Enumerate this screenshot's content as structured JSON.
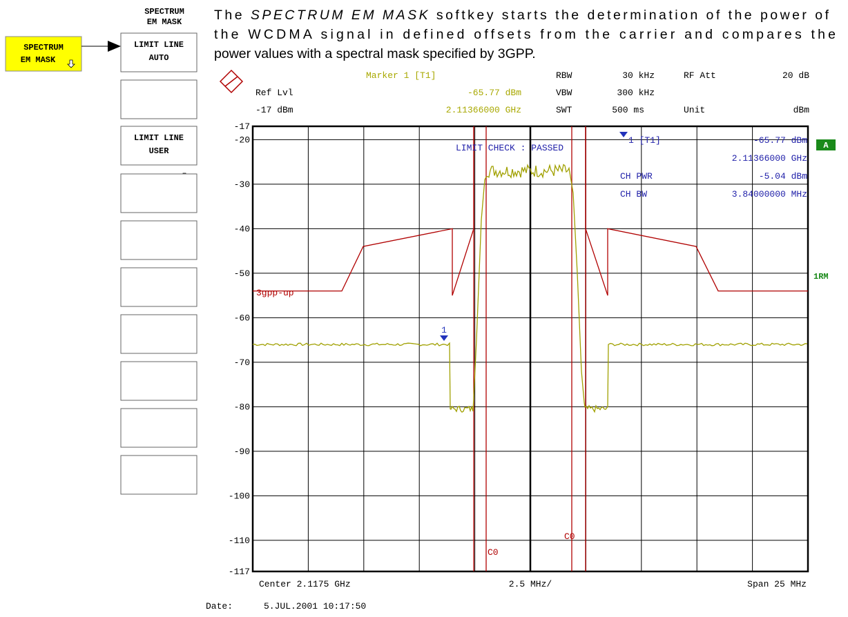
{
  "softkeys": {
    "menu_header": [
      "SPECTRUM",
      "EM MASK"
    ],
    "parent_key": [
      "SPECTRUM",
      "EM MASK"
    ],
    "keys": [
      [
        "LIMIT LINE",
        "AUTO"
      ],
      [],
      [
        "LIMIT LINE",
        "USER"
      ],
      [],
      [],
      [],
      [],
      [],
      [],
      []
    ]
  },
  "paragraph": {
    "lead": "The ",
    "emphasis": "SPECTRUM EM MASK",
    "rest": " softkey starts the determination of the power of the WCDMA signal in defined offsets from the carrier and compares the power values with a spectral mask specified by 3GPP."
  },
  "screen": {
    "header": {
      "marker_title": "Marker 1 [T1]",
      "marker_level": "-65.77 dBm",
      "marker_freq": "2.11366000 GHz",
      "ref_lvl_label": "Ref Lvl",
      "ref_lvl_value": "-17 dBm",
      "rbw_label": "RBW",
      "rbw_value": "30 kHz",
      "vbw_label": "VBW",
      "vbw_value": "300 kHz",
      "swt_label": "SWT",
      "swt_value": "500 ms",
      "rfatt_label": "RF Att",
      "rfatt_value": "20 dB",
      "unit_label": "Unit",
      "unit_value": "dBm"
    },
    "y_labels": [
      "-17",
      "-20",
      "-30",
      "-40",
      "-50",
      "-60",
      "-70",
      "-80",
      "-90",
      "-100",
      "-110",
      "-117"
    ],
    "readout": {
      "marker": "1 [T1]",
      "level": "-65.77 dBm",
      "freq": "2.11366000 GHz",
      "ch_pwr_label": "CH PWR",
      "ch_pwr": "-5.04 dBm",
      "ch_bw_label": "CH BW",
      "ch_bw": "3.84000000 MHz"
    },
    "limit_check": "LIMIT CHECK  : PASSED",
    "limit_line_name": "3gpp-up",
    "marker_number": "1",
    "channel_label_left": "C0",
    "channel_label_right": "C0",
    "side_a": "A",
    "side_1rm": "1RM",
    "footer": {
      "center": "Center 2.1175 GHz",
      "div": "2.5 MHz/",
      "span": "Span 25 MHz"
    },
    "date_label": "Date:",
    "date_value": "5.JUL.2001  10:17:50"
  }
}
